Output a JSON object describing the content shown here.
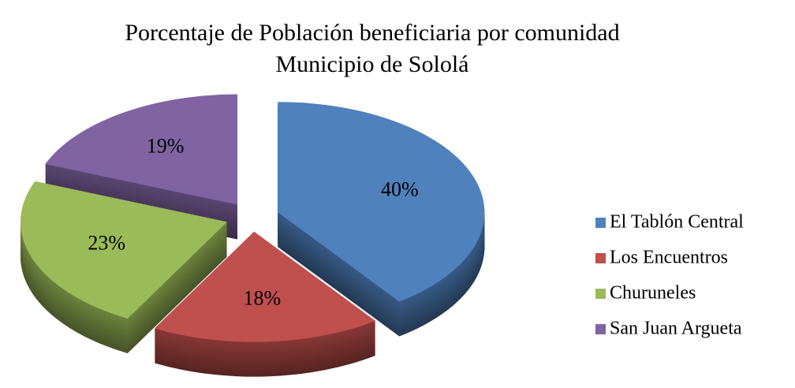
{
  "chart_data": {
    "type": "pie3d",
    "title": [
      "Porcentaje de Población beneficiaria por comunidad",
      "Municipio de Sololá"
    ],
    "categories": [
      "El Tablón Central",
      "Los Encuentros",
      "Churuneles",
      "San Juan Argueta"
    ],
    "values": [
      40,
      18,
      23,
      19
    ],
    "value_labels": [
      "40%",
      "18%",
      "23%",
      "19%"
    ],
    "colors": [
      "#4f81bd",
      "#c0504d",
      "#9bbb59",
      "#8064a2"
    ],
    "legend": "right"
  }
}
